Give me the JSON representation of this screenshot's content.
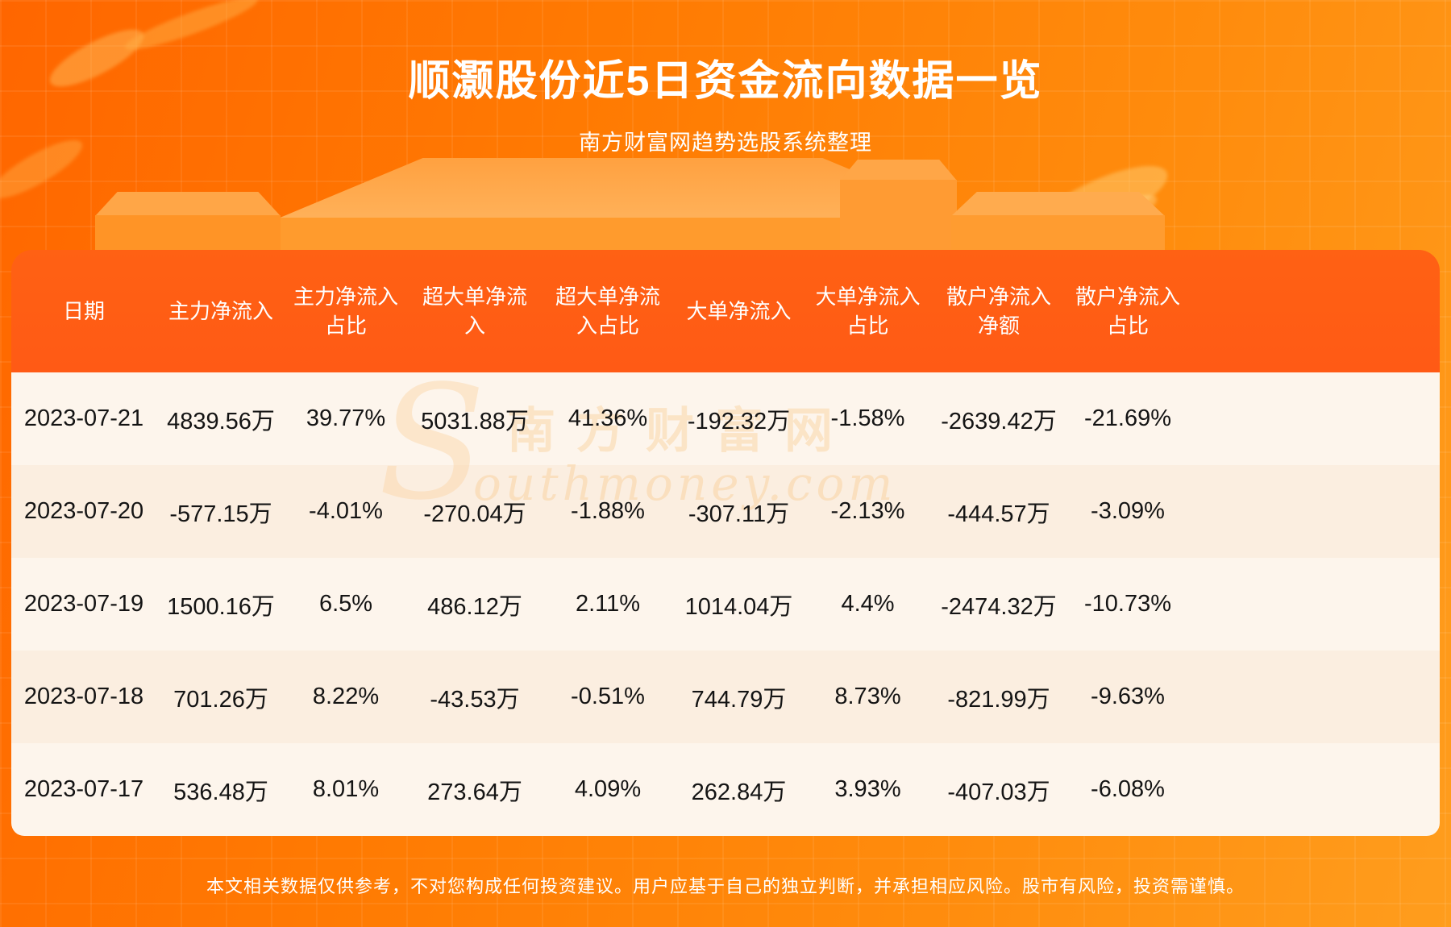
{
  "chart_data": {
    "type": "table",
    "title": "顺灏股份近5日资金流向数据一览",
    "subtitle": "南方财富网趋势选股系统整理",
    "columns": [
      "日期",
      "主力净流入",
      "主力净流入\n占比",
      "超大单净流\n入",
      "超大单净流\n入占比",
      "大单净流入",
      "大单净流入\n占比",
      "散户净流入\n净额",
      "散户净流入\n占比"
    ],
    "rows": [
      [
        "2023-07-21",
        "4839.56万",
        "39.77%",
        "5031.88万",
        "41.36%",
        "-192.32万",
        "-1.58%",
        "-2639.42万",
        "-21.69%"
      ],
      [
        "2023-07-20",
        "-577.15万",
        "-4.01%",
        "-270.04万",
        "-1.88%",
        "-307.11万",
        "-2.13%",
        "-444.57万",
        "-3.09%"
      ],
      [
        "2023-07-19",
        "1500.16万",
        "6.5%",
        "486.12万",
        "2.11%",
        "1014.04万",
        "4.4%",
        "-2474.32万",
        "-10.73%"
      ],
      [
        "2023-07-18",
        "701.26万",
        "8.22%",
        "-43.53万",
        "-0.51%",
        "744.79万",
        "8.73%",
        "-821.99万",
        "-9.63%"
      ],
      [
        "2023-07-17",
        "536.48万",
        "8.01%",
        "273.64万",
        "4.09%",
        "262.84万",
        "3.93%",
        "-407.03万",
        "-6.08%"
      ]
    ],
    "layout_hints": {
      "header_position": "top",
      "grid": false,
      "zebra_stripes": true
    }
  },
  "watermark": {
    "initial": "S",
    "cn": "南方财富网",
    "en_rest": "outhmoney.com"
  },
  "footer": {
    "disclaimer": "本文相关数据仅供参考，不对您构成任何投资建议。用户应基于自己的独立判断，并承担相应风险。股市有风险，投资需谨慎。"
  },
  "colors": {
    "banner_orange": "#ff7a02",
    "header_orange": "#ff5a15",
    "row_cream_dark": "#fbeee0",
    "row_cream_light": "#fdf5ec",
    "text_dark": "#141414",
    "text_white": "#ffffff"
  }
}
